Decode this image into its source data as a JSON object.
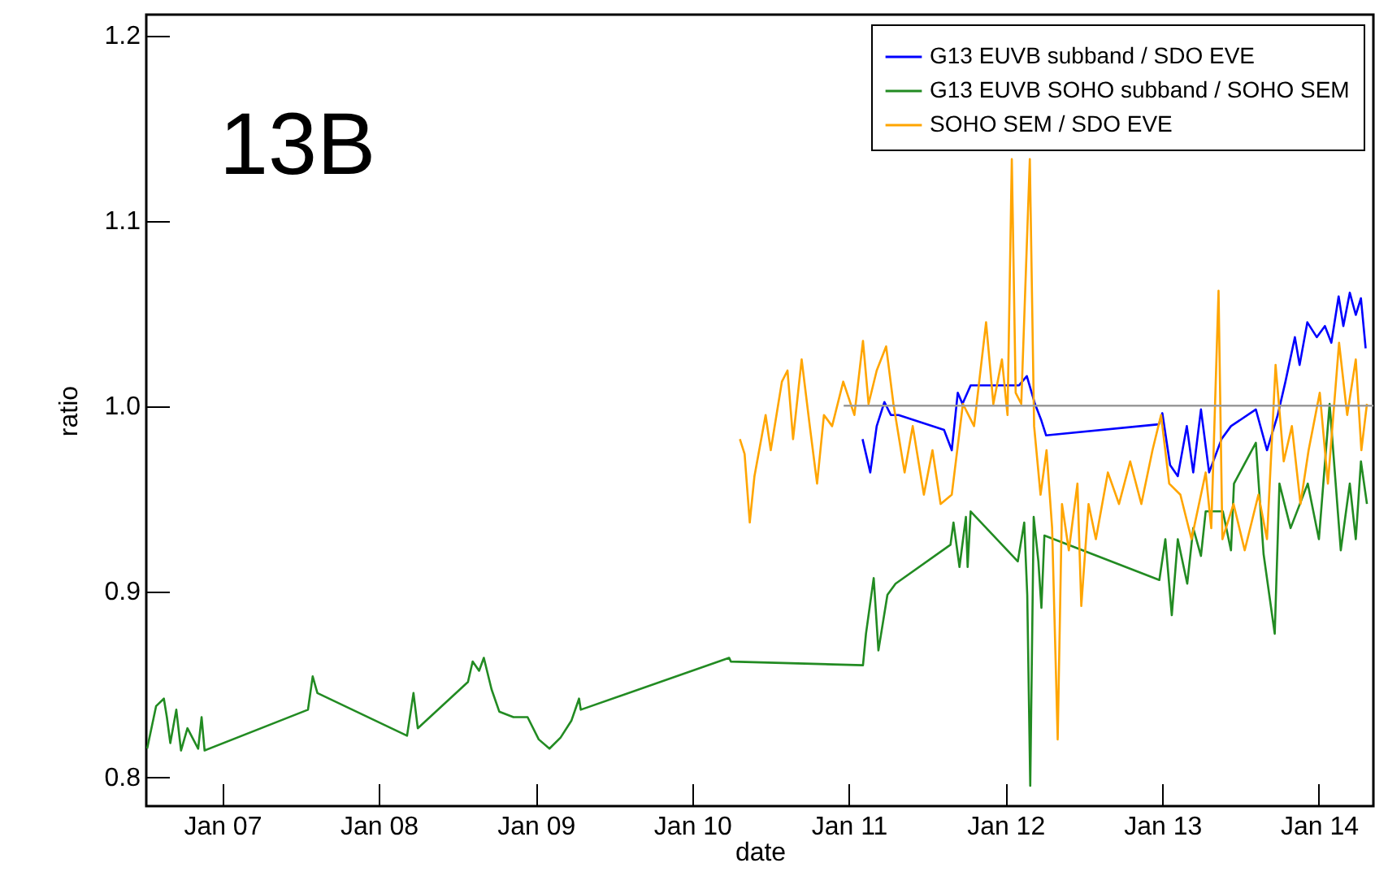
{
  "chart_data": {
    "type": "line",
    "xlabel": "date",
    "ylabel": "ratio",
    "annotations": [
      "13B"
    ],
    "xlim": [
      "2006-07-08",
      "2014-05-08"
    ],
    "xticks": [
      {
        "value": "2007-01-01",
        "label": "Jan 07"
      },
      {
        "value": "2008-01-01",
        "label": "Jan 08"
      },
      {
        "value": "2009-01-01",
        "label": "Jan 09"
      },
      {
        "value": "2010-01-01",
        "label": "Jan 10"
      },
      {
        "value": "2011-01-01",
        "label": "Jan 11"
      },
      {
        "value": "2012-01-01",
        "label": "Jan 12"
      },
      {
        "value": "2013-01-01",
        "label": "Jan 13"
      },
      {
        "value": "2014-01-01",
        "label": "Jan 14"
      }
    ],
    "ylim": [
      0.784,
      1.211
    ],
    "yticks": [
      0.8,
      0.9,
      {
        "value": 1,
        "label": "1.0"
      },
      1.1,
      1.2
    ],
    "legend": "top right",
    "grid": false,
    "series": [
      {
        "name": "G13 EUVB subband / SDO EVE",
        "color": "#0000ff",
        "x": [
          "2011-02-02",
          "2011-02-20",
          "2011-03-07",
          "2011-03-25",
          "2011-04-09",
          "2011-04-27",
          "2011-08-11",
          "2011-08-29",
          "2011-09-12",
          "2011-09-23",
          "2011-10-12",
          "2012-02-02",
          "2012-02-20",
          "2012-03-10",
          "2012-03-25",
          "2012-04-05",
          "2012-12-24",
          "2013-01-01",
          "2013-01-19",
          "2013-02-06",
          "2013-02-27",
          "2013-03-14",
          "2013-04-01",
          "2013-04-20",
          "2013-05-19",
          "2013-06-10",
          "2013-08-07",
          "2013-09-02",
          "2013-09-27",
          "2013-10-15",
          "2013-11-06",
          "2013-11-17",
          "2013-12-05",
          "2013-12-27",
          "2014-01-15",
          "2014-01-30",
          "2014-02-16",
          "2014-02-27",
          "2014-03-14",
          "2014-03-28",
          "2014-04-09",
          "2014-04-20"
        ],
        "values": [
          0.982,
          0.964,
          0.989,
          1.002,
          0.995,
          0.995,
          0.987,
          0.976,
          1.007,
          1.001,
          1.011,
          1.011,
          1.016,
          1.001,
          0.992,
          0.984,
          0.99,
          0.996,
          0.968,
          0.962,
          0.989,
          0.964,
          0.998,
          0.964,
          0.982,
          0.989,
          0.998,
          0.976,
          0.995,
          1.013,
          1.037,
          1.022,
          1.045,
          1.037,
          1.043,
          1.034,
          1.059,
          1.043,
          1.061,
          1.049,
          1.058,
          1.031
        ]
      },
      {
        "name": "G13 EUVB SOHO subband / SOHO SEM",
        "color": "#228b22",
        "x": [
          "2006-07-10",
          "2006-07-31",
          "2006-08-18",
          "2006-08-25",
          "2006-09-02",
          "2006-09-16",
          "2006-09-27",
          "2006-10-12",
          "2006-11-06",
          "2006-11-14",
          "2006-11-21",
          "2007-07-20",
          "2007-07-31",
          "2007-08-11",
          "2008-03-07",
          "2008-03-22",
          "2008-04-01",
          "2008-07-27",
          "2008-08-07",
          "2008-08-22",
          "2008-09-02",
          "2008-09-20",
          "2008-10-08",
          "2008-11-10",
          "2008-12-13",
          "2009-01-08",
          "2009-02-02",
          "2009-02-28",
          "2009-03-25",
          "2009-04-12",
          "2009-04-16",
          "2010-03-28",
          "2010-04-01",
          "2011-02-03",
          "2011-02-10",
          "2011-02-28",
          "2011-03-11",
          "2011-04-01",
          "2011-04-20",
          "2011-08-26",
          "2011-09-02",
          "2011-09-16",
          "2011-10-01",
          "2011-10-05",
          "2011-10-12",
          "2012-01-30",
          "2012-02-14",
          "2012-02-21",
          "2012-02-28",
          "2012-03-07",
          "2012-03-18",
          "2012-03-25",
          "2012-04-01",
          "2012-12-25",
          "2013-01-08",
          "2013-01-23",
          "2013-02-06",
          "2013-02-28",
          "2013-03-14",
          "2013-04-01",
          "2013-04-12",
          "2013-05-22",
          "2013-06-10",
          "2013-06-17",
          "2013-08-07",
          "2013-08-25",
          "2013-09-20",
          "2013-10-01",
          "2013-10-27",
          "2013-12-06",
          "2014-01-01",
          "2014-01-26",
          "2014-02-21",
          "2014-03-14",
          "2014-03-28",
          "2014-04-09",
          "2014-04-23"
        ],
        "values": [
          0.815,
          0.838,
          0.842,
          0.832,
          0.818,
          0.836,
          0.814,
          0.826,
          0.815,
          0.832,
          0.814,
          0.836,
          0.854,
          0.845,
          0.822,
          0.845,
          0.826,
          0.851,
          0.862,
          0.857,
          0.864,
          0.847,
          0.835,
          0.832,
          0.832,
          0.82,
          0.815,
          0.821,
          0.83,
          0.842,
          0.836,
          0.864,
          0.862,
          0.86,
          0.877,
          0.907,
          0.868,
          0.898,
          0.904,
          0.925,
          0.937,
          0.913,
          0.94,
          0.913,
          0.943,
          0.916,
          0.937,
          0.898,
          0.795,
          0.94,
          0.916,
          0.891,
          0.93,
          0.906,
          0.928,
          0.887,
          0.928,
          0.904,
          0.934,
          0.919,
          0.943,
          0.943,
          0.922,
          0.958,
          0.98,
          0.92,
          0.877,
          0.958,
          0.934,
          0.958,
          0.928,
          1.001,
          0.922,
          0.958,
          0.928,
          0.97,
          0.947
        ]
      },
      {
        "name": "SOHO SEM / SDO EVE",
        "color": "#ffa500",
        "x": [
          "2010-04-22",
          "2010-05-03",
          "2010-05-15",
          "2010-05-26",
          "2010-06-21",
          "2010-07-03",
          "2010-07-29",
          "2010-08-11",
          "2010-08-24",
          "2010-09-13",
          "2010-10-02",
          "2010-10-19",
          "2010-11-04",
          "2010-11-23",
          "2010-12-19",
          "2011-01-14",
          "2011-02-03",
          "2011-02-16",
          "2011-03-07",
          "2011-03-29",
          "2011-04-15",
          "2011-05-11",
          "2011-05-30",
          "2011-06-25",
          "2011-07-15",
          "2011-08-03",
          "2011-08-29",
          "2011-09-24",
          "2011-10-20",
          "2011-11-17",
          "2011-12-04",
          "2011-12-24",
          "2012-01-06",
          "2012-01-16",
          "2012-01-25",
          "2012-02-07",
          "2012-02-27",
          "2012-03-08",
          "2012-03-23",
          "2012-04-06",
          "2012-04-19",
          "2012-05-02",
          "2012-05-12",
          "2012-05-28",
          "2012-06-17",
          "2012-06-26",
          "2012-07-13",
          "2012-07-30",
          "2012-08-27",
          "2012-09-22",
          "2012-10-18",
          "2012-11-13",
          "2012-12-09",
          "2012-12-29",
          "2013-01-17",
          "2013-02-12",
          "2013-03-10",
          "2013-04-12",
          "2013-04-25",
          "2013-05-12",
          "2013-05-21",
          "2013-06-16",
          "2013-07-12",
          "2013-08-13",
          "2013-09-02",
          "2013-09-22",
          "2013-10-11",
          "2013-10-30",
          "2013-11-19",
          "2013-12-08",
          "2014-01-03",
          "2014-01-22",
          "2014-02-17",
          "2014-03-08",
          "2014-03-28",
          "2014-04-10",
          "2014-04-23"
        ],
        "values": [
          0.982,
          0.974,
          0.937,
          0.962,
          0.995,
          0.976,
          1.013,
          1.019,
          0.982,
          1.025,
          0.989,
          0.958,
          0.995,
          0.989,
          1.013,
          0.995,
          1.035,
          1.001,
          1.019,
          1.032,
          1.001,
          0.964,
          0.989,
          0.952,
          0.976,
          0.947,
          0.952,
          1.001,
          0.989,
          1.045,
          1.001,
          1.025,
          0.995,
          1.133,
          1.007,
          1.001,
          1.133,
          0.989,
          0.952,
          0.976,
          0.934,
          0.82,
          0.947,
          0.922,
          0.958,
          0.892,
          0.947,
          0.928,
          0.964,
          0.947,
          0.97,
          0.947,
          0.976,
          0.995,
          0.958,
          0.952,
          0.928,
          0.964,
          0.934,
          1.062,
          0.928,
          0.947,
          0.922,
          0.952,
          0.928,
          1.022,
          0.97,
          0.989,
          0.947,
          0.976,
          1.007,
          0.958,
          1.034,
          0.995,
          1.025,
          0.976,
          1.001
        ]
      },
      {
        "type": "line",
        "color": "#999999",
        "x": [
          "2010-12-20",
          "2014-05-08"
        ],
        "values": [
          1,
          1
        ]
      }
    ]
  }
}
